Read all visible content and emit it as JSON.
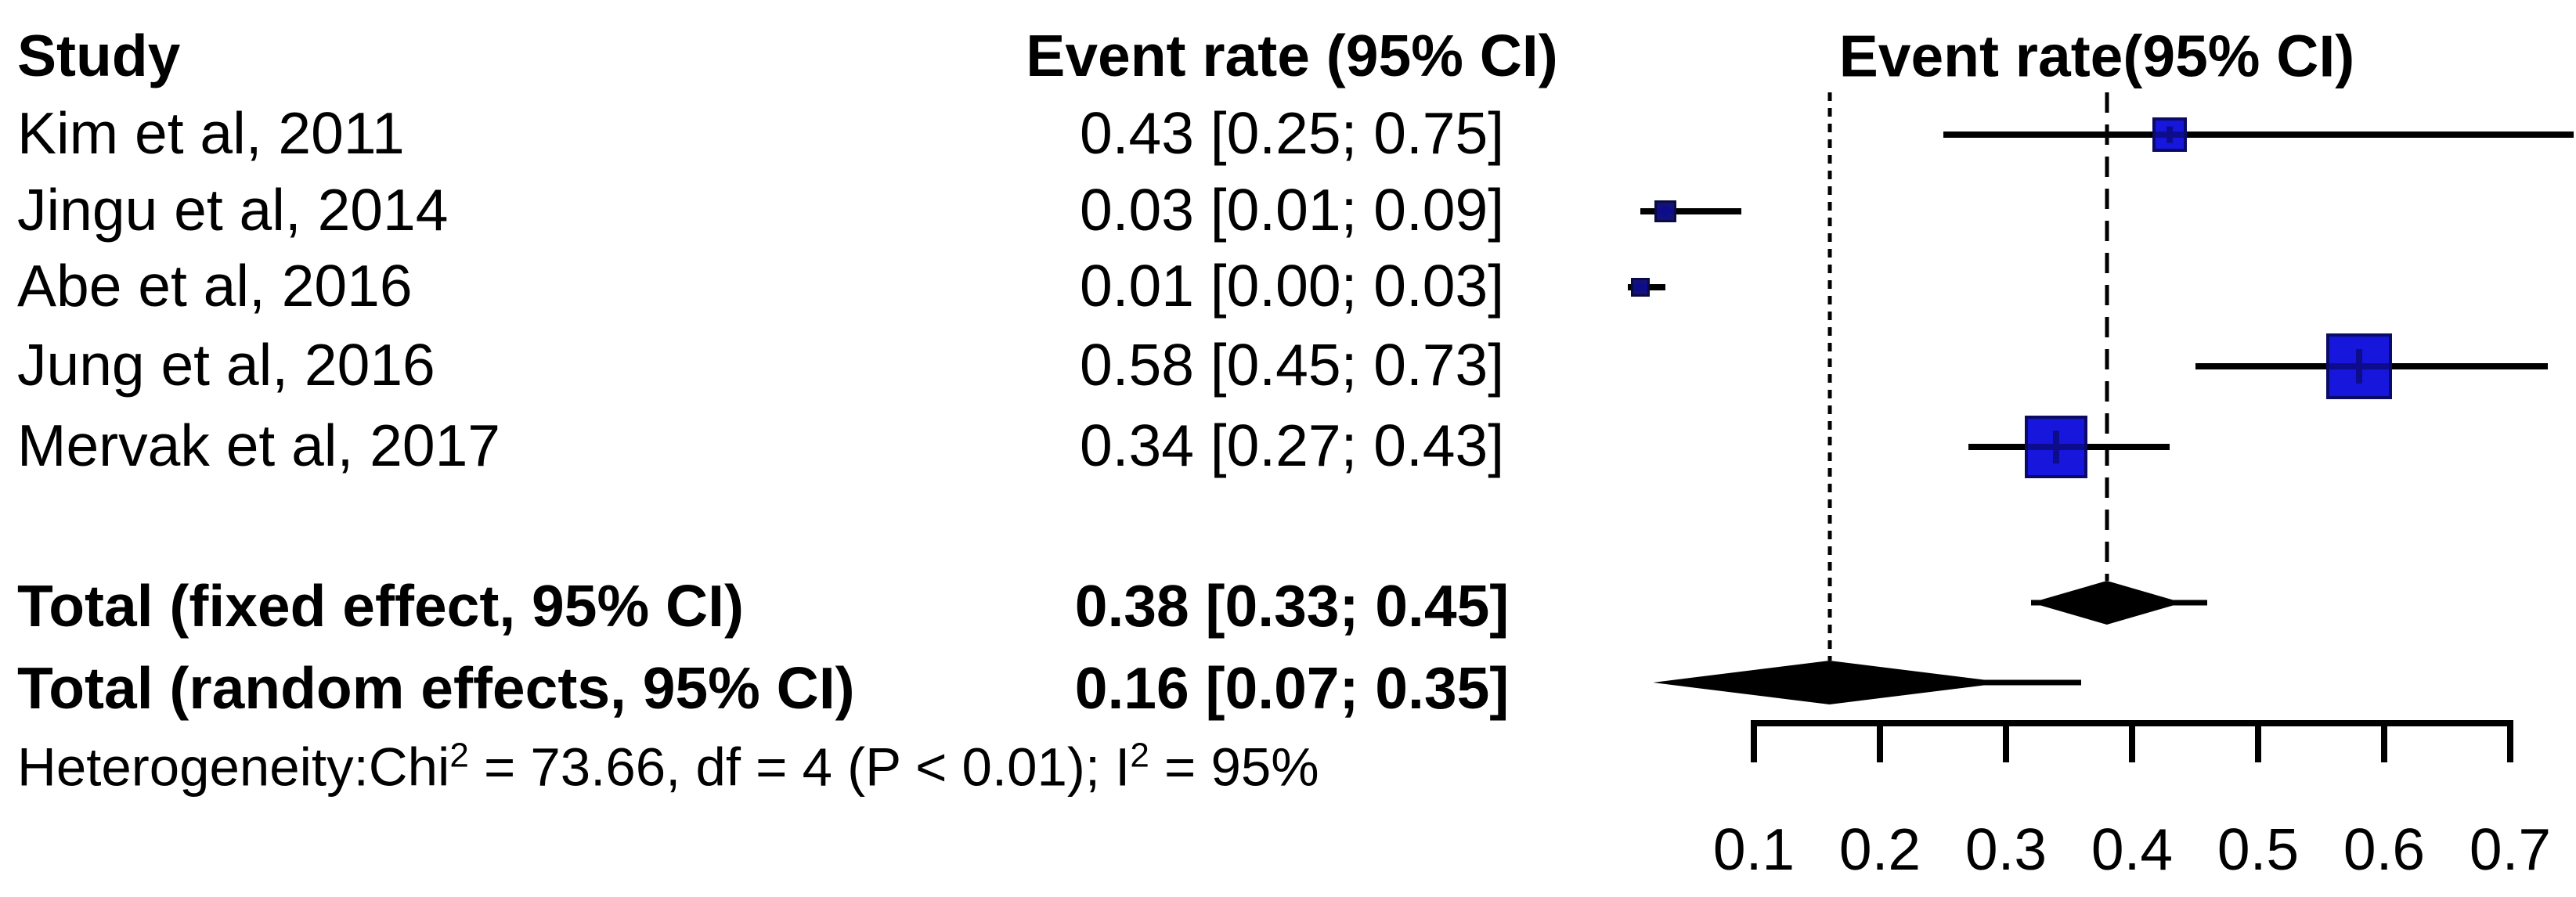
{
  "table": {
    "study_header": "Study",
    "rate_header": "Event rate (95% CI)",
    "plot_header": "Event rate(95% CI)",
    "rows": [
      {
        "study": "Kim et al, 2011",
        "rate_text": "0.43 [0.25; 0.75]"
      },
      {
        "study": "Jingu et al, 2014",
        "rate_text": "0.03 [0.01; 0.09]"
      },
      {
        "study": "Abe et al, 2016",
        "rate_text": "0.01 [0.00; 0.03]"
      },
      {
        "study": "Jung et al, 2016",
        "rate_text": "0.58 [0.45; 0.73]"
      },
      {
        "study": "Mervak et al, 2017",
        "rate_text": "0.34 [0.27; 0.43]"
      }
    ],
    "totals": [
      {
        "label": "Total (fixed effect, 95% CI)",
        "rate_text": "0.38 [0.33; 0.45]"
      },
      {
        "label": "Total (random effects, 95% CI)",
        "rate_text": "0.16 [0.07; 0.35]"
      }
    ],
    "heterogeneity": {
      "p1": "Heterogeneity:Chi",
      "sup1": "2",
      "p2": " = 73.66, df = 4 (P < 0.01); I",
      "sup2": "2",
      "p3": " = 95%"
    }
  },
  "chart_data": {
    "type": "forest",
    "title": "Event rate(95% CI)",
    "x_ticks": [
      0.1,
      0.2,
      0.3,
      0.4,
      0.5,
      0.6,
      0.7
    ],
    "xlim": [
      0.0,
      0.75
    ],
    "studies": [
      {
        "name": "Kim et al, 2011",
        "est": 0.43,
        "lo": 0.25,
        "hi": 0.75,
        "marker_px": 44
      },
      {
        "name": "Jingu et al, 2014",
        "est": 0.03,
        "lo": 0.01,
        "hi": 0.09,
        "marker_px": 28
      },
      {
        "name": "Abe et al, 2016",
        "est": 0.01,
        "lo": 0.0,
        "hi": 0.03,
        "marker_px": 24
      },
      {
        "name": "Jung et al, 2016",
        "est": 0.58,
        "lo": 0.45,
        "hi": 0.73,
        "marker_px": 84
      },
      {
        "name": "Mervak et al, 2017",
        "est": 0.34,
        "lo": 0.27,
        "hi": 0.43,
        "marker_px": 80
      }
    ],
    "totals": [
      {
        "name": "Total (fixed effect, 95% CI)",
        "est": 0.38,
        "lo": 0.33,
        "hi": 0.45
      },
      {
        "name": "Total (random effects, 95% CI)",
        "est": 0.16,
        "lo": 0.07,
        "hi": 0.35
      }
    ],
    "reference_lines": [
      {
        "value": 0.38,
        "style": "dashed",
        "attach": "fixed"
      },
      {
        "value": 0.16,
        "style": "dotted",
        "attach": "random"
      }
    ],
    "heterogeneity": "Heterogeneity: Chi2 = 73.66, df = 4 (P < 0.01); I2 = 95%"
  },
  "colors": {
    "square_fill_large": "#1616dd",
    "square_fill_small": "#12127a",
    "square_border": "#0b0b66",
    "line": "#000000",
    "diamond": "#000000",
    "text": "#000000",
    "background": "#ffffff"
  }
}
